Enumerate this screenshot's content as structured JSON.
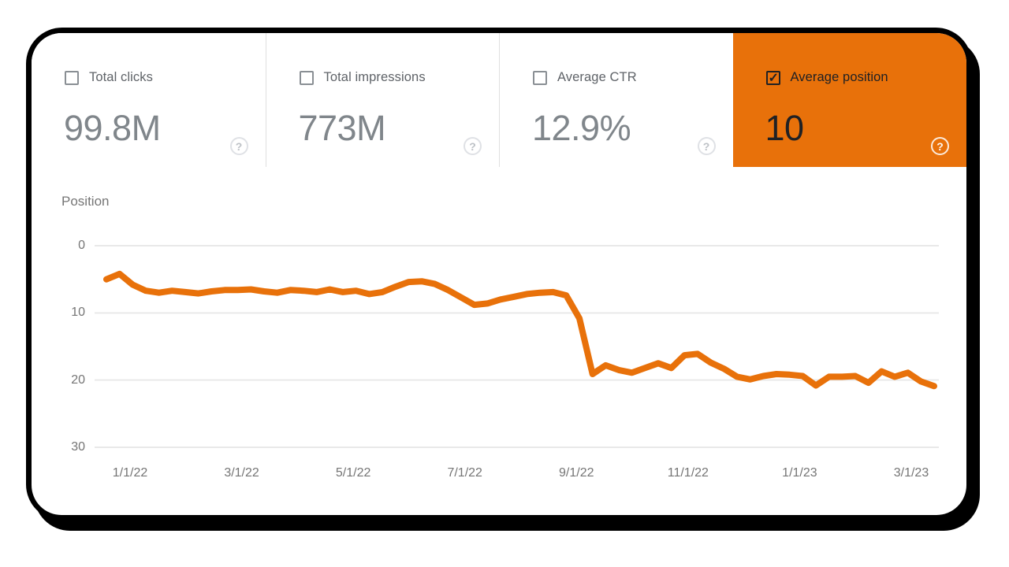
{
  "colors": {
    "accent_orange": "#e8710a",
    "tile_text_gray": "#5f6368",
    "value_gray": "#80868b",
    "selected_text": "#202124",
    "gridline": "#e9e9e9",
    "axis_text": "#757575",
    "card_border": "#000000"
  },
  "metrics_bar": {
    "tiles": [
      {
        "id": "total-clicks",
        "label": "Total clicks",
        "value": "99.8M",
        "checked": false,
        "selected": false,
        "help_glyph": "?"
      },
      {
        "id": "total-impressions",
        "label": "Total impressions",
        "value": "773M",
        "checked": false,
        "selected": false,
        "help_glyph": "?"
      },
      {
        "id": "average-ctr",
        "label": "Average CTR",
        "value": "12.9%",
        "checked": false,
        "selected": false,
        "help_glyph": "?"
      },
      {
        "id": "average-position",
        "label": "Average position",
        "value": "10",
        "checked": true,
        "selected": true,
        "accent": "#e8710a",
        "help_glyph": "?"
      }
    ]
  },
  "chart_data": {
    "type": "line",
    "title": "Position",
    "ylabel": "Position",
    "y_axis": {
      "ticks": [
        0,
        10,
        20,
        30
      ],
      "range": [
        0,
        30
      ],
      "inverted": true
    },
    "x_axis": {
      "tick_labels": [
        "1/1/22",
        "3/1/22",
        "5/1/22",
        "7/1/22",
        "9/1/22",
        "11/1/22",
        "1/1/23",
        "3/1/23"
      ]
    },
    "grid": true,
    "legend_position": "none",
    "series": [
      {
        "name": "Average position",
        "color": "#e8710a",
        "cadence": "weekly (approx.), mid-Dec 2021 to mid-Mar 2023",
        "values": [
          5.0,
          4.2,
          5.8,
          6.7,
          7.0,
          6.7,
          6.9,
          7.1,
          6.8,
          6.6,
          6.6,
          6.5,
          6.8,
          7.0,
          6.6,
          6.7,
          6.9,
          6.5,
          6.9,
          6.7,
          7.2,
          6.9,
          6.1,
          5.4,
          5.3,
          5.7,
          6.6,
          7.7,
          8.8,
          8.6,
          8.0,
          7.6,
          7.2,
          7.0,
          6.9,
          7.4,
          10.8,
          19.1,
          17.8,
          18.5,
          18.9,
          18.2,
          17.5,
          18.2,
          16.3,
          16.1,
          17.4,
          18.3,
          19.5,
          19.9,
          19.4,
          19.1,
          19.2,
          19.4,
          20.8,
          19.5,
          19.5,
          19.4,
          20.4,
          18.7,
          19.5,
          18.9,
          20.2,
          20.9
        ]
      }
    ]
  }
}
